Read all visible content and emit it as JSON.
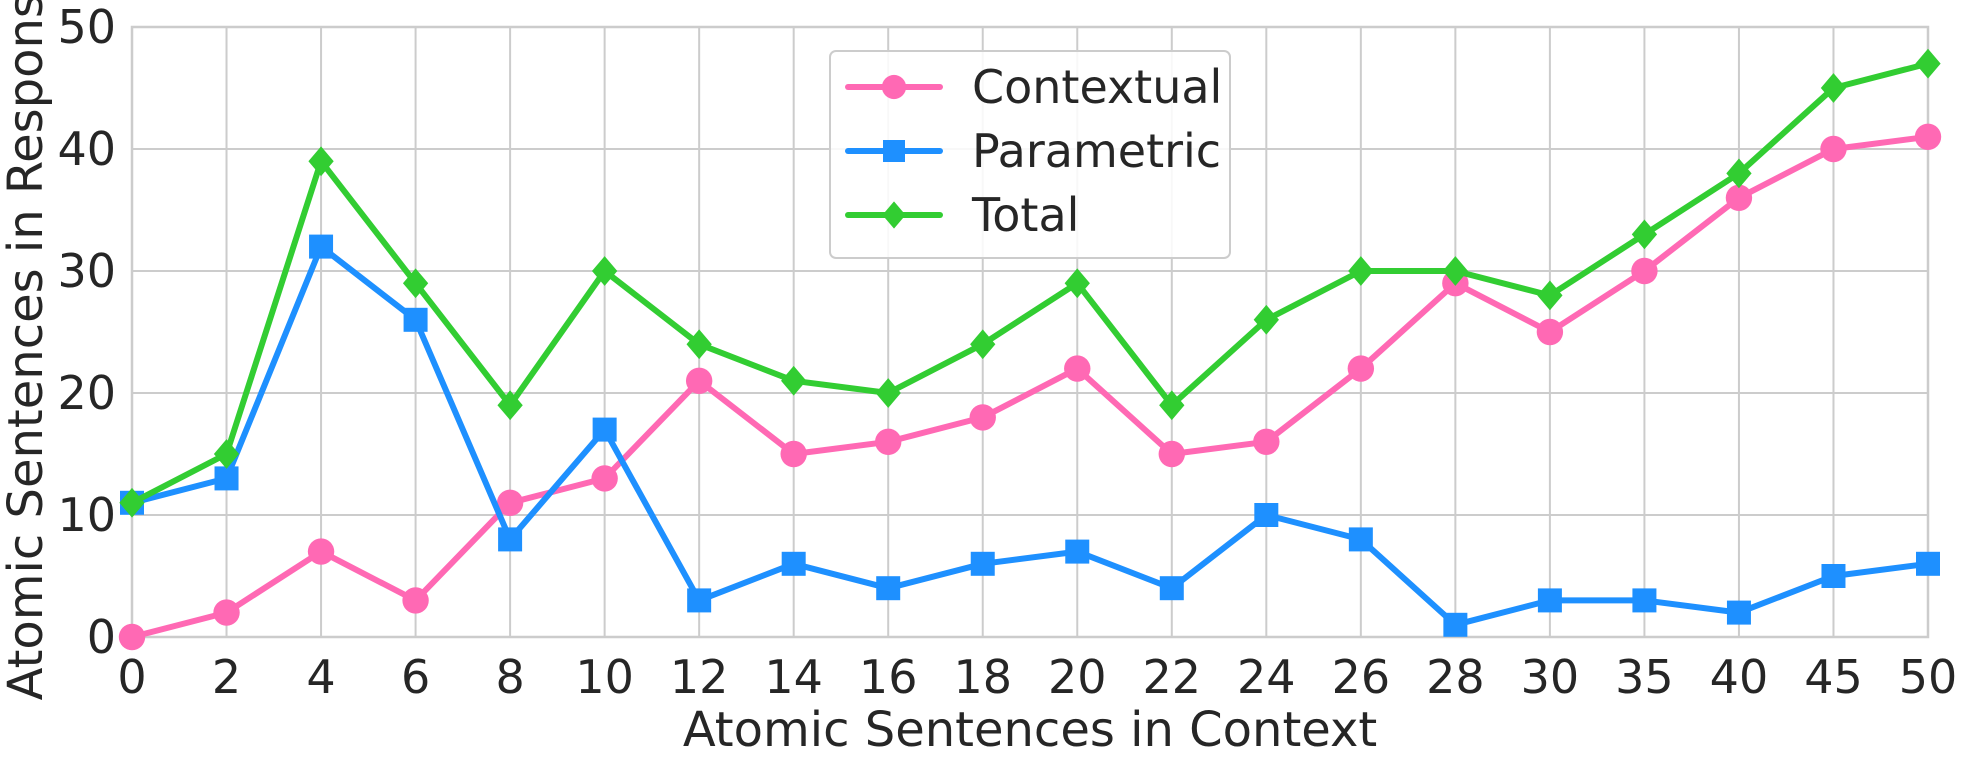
{
  "chart_data": {
    "type": "line",
    "title": "",
    "xlabel": "Atomic Sentences in Context",
    "ylabel": "Atomic Sentences in Response",
    "categories": [
      "0",
      "2",
      "4",
      "6",
      "8",
      "10",
      "12",
      "14",
      "16",
      "18",
      "20",
      "22",
      "24",
      "26",
      "28",
      "30",
      "35",
      "40",
      "45",
      "50"
    ],
    "ylim": [
      0,
      50
    ],
    "yticks": [
      0,
      10,
      20,
      30,
      40,
      50
    ],
    "grid": true,
    "legend_position": "top-center",
    "series": [
      {
        "name": "Contextual",
        "color": "#ff69b4",
        "marker": "circle",
        "values": [
          0,
          2,
          7,
          3,
          11,
          13,
          21,
          15,
          16,
          18,
          22,
          15,
          16,
          22,
          29,
          25,
          30,
          36,
          40,
          41
        ]
      },
      {
        "name": "Parametric",
        "color": "#1e90ff",
        "marker": "square",
        "values": [
          11,
          13,
          32,
          26,
          8,
          17,
          3,
          6,
          4,
          6,
          7,
          4,
          10,
          8,
          1,
          3,
          3,
          2,
          5,
          6
        ]
      },
      {
        "name": "Total",
        "color": "#32cd32",
        "marker": "diamond",
        "values": [
          11,
          15,
          39,
          29,
          19,
          30,
          24,
          21,
          20,
          24,
          29,
          19,
          26,
          30,
          30,
          28,
          33,
          38,
          45,
          47
        ]
      }
    ]
  }
}
